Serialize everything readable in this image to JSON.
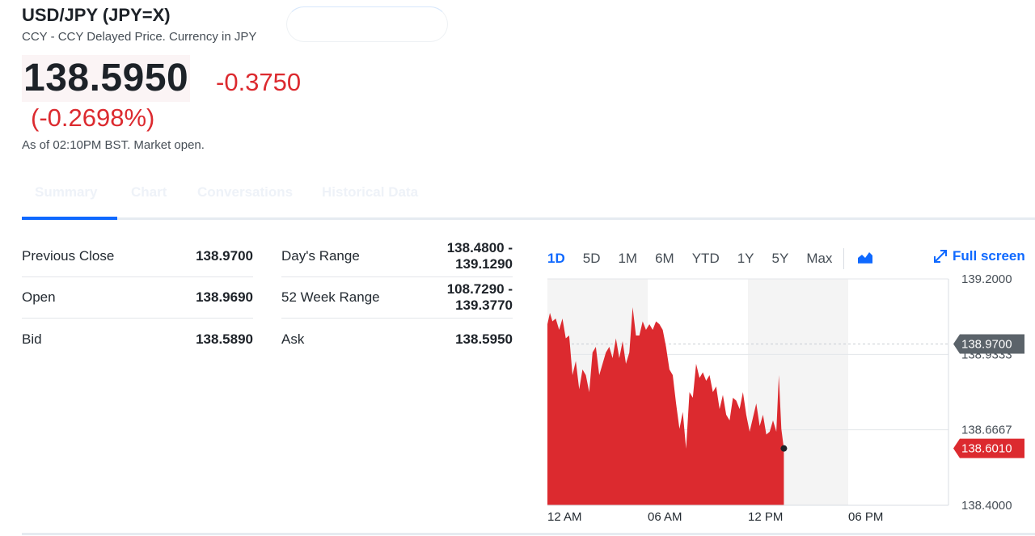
{
  "header": {
    "title": "USD/JPY (JPY=X)",
    "subtitle": "CCY - CCY Delayed Price. Currency in JPY"
  },
  "quote": {
    "price": "138.5950",
    "change": "-0.3750",
    "change_pct": "(-0.2698%)",
    "as_of": "As of 02:10PM BST. Market open."
  },
  "tabs": [
    "Summary",
    "Chart",
    "Conversations",
    "Historical Data"
  ],
  "stats_left": [
    {
      "label": "Previous Close",
      "value": "138.9700"
    },
    {
      "label": "Open",
      "value": "138.9690"
    },
    {
      "label": "Bid",
      "value": "138.5890"
    }
  ],
  "stats_right": [
    {
      "label": "Day's Range",
      "value1": "138.4800 -",
      "value2": "139.1290"
    },
    {
      "label": "52 Week Range",
      "value1": "108.7290 -",
      "value2": "139.3770"
    },
    {
      "label": "Ask",
      "value1": "138.5950",
      "value2": ""
    }
  ],
  "chart_controls": {
    "ranges": [
      "1D",
      "5D",
      "1M",
      "6M",
      "YTD",
      "1Y",
      "5Y",
      "Max"
    ],
    "active": "1D",
    "chart_type_icon": "area-chart-icon",
    "fullscreen_label": "Full screen"
  },
  "colors": {
    "accent": "#0f69ff",
    "negative": "#dc2a2f",
    "prev_close_tag": "#5b636a"
  },
  "chart_data": {
    "type": "area",
    "x_ticks": [
      "12 AM",
      "06 AM",
      "12 PM",
      "06 PM"
    ],
    "y_ticks": [
      "139.2000",
      "138.9333",
      "138.6667",
      "138.4000"
    ],
    "ylim": [
      138.4,
      139.2
    ],
    "xlim_hours": [
      0,
      24
    ],
    "previous_close": {
      "value": 138.97,
      "label": "138.9700"
    },
    "last": {
      "value": 138.601,
      "label": "138.6010"
    },
    "series": [
      {
        "x": [
          0,
          0.15,
          0.3,
          0.5,
          0.7,
          0.9,
          1.1,
          1.3,
          1.5,
          1.7,
          1.9,
          2.1,
          2.3,
          2.5,
          2.7,
          2.9,
          3.1,
          3.3,
          3.5,
          3.7,
          3.9,
          4.1,
          4.3,
          4.5,
          4.7,
          4.9,
          5.1,
          5.3,
          5.5,
          5.7,
          5.9,
          6.1,
          6.3,
          6.5,
          6.7,
          6.9,
          7.1,
          7.3,
          7.5,
          7.7,
          7.9,
          8.1,
          8.3,
          8.5,
          8.7,
          8.9,
          9.1,
          9.3,
          9.5,
          9.7,
          9.9,
          10.1,
          10.3,
          10.5,
          10.7,
          10.9,
          11.1,
          11.3,
          11.5,
          11.7,
          11.9,
          12.1,
          12.3,
          12.5,
          12.7,
          12.9,
          13.1,
          13.3,
          13.5,
          13.7,
          13.85,
          14.0,
          14.15
        ],
        "values": [
          139.04,
          139.08,
          139.05,
          139.06,
          139.02,
          139.06,
          138.99,
          139.0,
          138.86,
          138.91,
          138.81,
          138.88,
          138.86,
          138.8,
          138.94,
          138.96,
          138.86,
          138.9,
          138.94,
          138.96,
          138.92,
          138.99,
          138.92,
          138.98,
          138.9,
          138.94,
          139.1,
          139.0,
          139.0,
          139.05,
          139.02,
          139.04,
          139.02,
          139.05,
          139.04,
          139.02,
          138.96,
          138.88,
          138.86,
          138.76,
          138.67,
          138.73,
          138.6,
          138.8,
          138.78,
          138.9,
          138.85,
          138.87,
          138.84,
          138.86,
          138.8,
          138.82,
          138.74,
          138.79,
          138.72,
          138.7,
          138.78,
          138.77,
          138.74,
          138.8,
          138.72,
          138.66,
          138.71,
          138.76,
          138.68,
          138.72,
          138.65,
          138.66,
          138.7,
          138.66,
          138.86,
          138.67,
          138.601
        ]
      }
    ]
  }
}
